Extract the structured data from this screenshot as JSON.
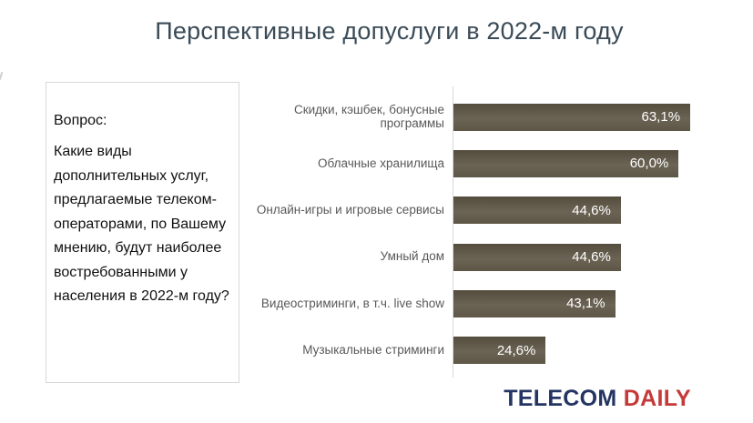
{
  "title": "Перспективные допуслуги в 2022-м году",
  "question_box": {
    "heading": "Вопрос:",
    "body": "Какие виды дополнительных услуг, предлагаемые телеком-операторами, по Вашему мнению, будут наиболее востребованными у населения в 2022-м году?"
  },
  "chart_data": {
    "type": "bar",
    "orientation": "horizontal",
    "title": "Перспективные допуслуги в 2022-м году",
    "categories": [
      "Скидки, кэшбек, бонусные программы",
      "Облачные хранилища",
      "Онлайн-игры и игровые сервисы",
      "Умный дом",
      "Видеостриминги, в т.ч. live show",
      "Музыкальные стриминги"
    ],
    "values": [
      63.1,
      60.0,
      44.6,
      44.6,
      43.1,
      24.6
    ],
    "value_labels": [
      "63,1%",
      "60,0%",
      "44,6%",
      "44,6%",
      "43,1%",
      "24,6%"
    ],
    "unit": "%",
    "xlabel": "",
    "ylabel": "",
    "xlim": [
      0,
      66
    ],
    "grid": false,
    "legend": "none",
    "data_labels": "inside-end"
  },
  "logo": {
    "telecom": "TELECOM",
    "daily": "DAILY"
  },
  "colors": {
    "title_text": "#3a4b57",
    "category_label": "#595959",
    "bar_top": "#544d3e",
    "bar_mid": "#6b6354",
    "bar_bottom": "#5e5747",
    "axis_line": "#d9d9d9",
    "box_border": "#d9d9d9",
    "value_label": "#ffffff",
    "logo_telecom": "#243563",
    "logo_daily": "#c33a38"
  }
}
